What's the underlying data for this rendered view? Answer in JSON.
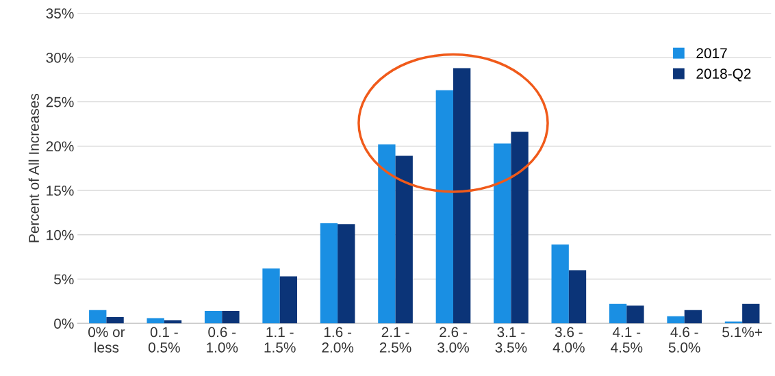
{
  "chart_data": {
    "type": "bar",
    "categories": [
      "0% or\nless",
      "0.1 -\n0.5%",
      "0.6 -\n1.0%",
      "1.1 -\n1.5%",
      "1.6 -\n2.0%",
      "2.1 -\n2.5%",
      "2.6 -\n3.0%",
      "3.1 -\n3.5%",
      "3.6 -\n4.0%",
      "4.1 -\n4.5%",
      "4.6 -\n5.0%",
      "5.1%+"
    ],
    "series": [
      {
        "name": "2017",
        "color": "#1a8fe3",
        "values": [
          1.5,
          0.6,
          1.4,
          6.2,
          11.3,
          20.2,
          26.3,
          20.3,
          8.9,
          2.2,
          0.8,
          0.2
        ]
      },
      {
        "name": "2018-Q2",
        "color": "#0b3478",
        "values": [
          0.7,
          0.35,
          1.4,
          5.3,
          11.2,
          18.9,
          28.8,
          21.6,
          6.0,
          2.0,
          1.5,
          2.2
        ]
      }
    ],
    "ylabel": "Percent of All Increases",
    "ylim": [
      0,
      35
    ],
    "yticks": [
      {
        "value": 0,
        "label": "0%"
      },
      {
        "value": 5,
        "label": "5%"
      },
      {
        "value": 10,
        "label": "10%"
      },
      {
        "value": 15,
        "label": "15%"
      },
      {
        "value": 20,
        "label": "20%"
      },
      {
        "value": 25,
        "label": "25%"
      },
      {
        "value": 30,
        "label": "30%"
      },
      {
        "value": 35,
        "label": "35%"
      }
    ],
    "grid": "y",
    "legend": "top right"
  }
}
